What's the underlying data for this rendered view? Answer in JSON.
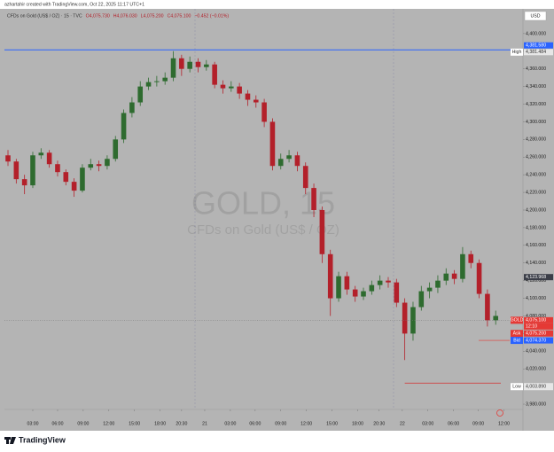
{
  "header": {
    "credit": "azhartahir created with TradingView.com, Oct 22, 2025 11:17 UTC+1",
    "symbol": "CFDs on Gold (US$ / OZ) · 15 · TVC",
    "open": "O4,075.730",
    "high": "H4,076.030",
    "low": "L4,075.200",
    "close": "C4,075.100",
    "change": "−0.452 (−0.01%)",
    "currency": "USD"
  },
  "watermark": {
    "title": "GOLD, 15",
    "subtitle": "CFDs on Gold (US$ / OZ)"
  },
  "footer": {
    "brand": "TradingView"
  },
  "chart_data": {
    "type": "candlestick",
    "up_color": "#2e6b2f",
    "down_color": "#b3202a",
    "x": [
      0,
      1,
      2,
      3,
      4,
      5,
      6,
      7,
      8,
      9,
      10,
      11,
      12,
      13,
      14,
      15,
      16,
      17,
      18,
      19,
      20,
      21,
      22,
      23,
      24,
      25,
      26,
      27,
      28,
      29,
      30,
      31,
      32,
      33,
      34,
      35,
      36,
      37,
      38,
      39,
      40,
      41,
      42,
      43,
      44,
      45,
      46,
      47,
      48,
      49,
      50,
      51,
      52,
      53,
      54,
      55,
      56,
      57,
      58,
      59
    ],
    "open": [
      4262,
      4255,
      4235,
      4228,
      4262,
      4265,
      4252,
      4243,
      4232,
      4222,
      4248,
      4252,
      4250,
      4258,
      4280,
      4310,
      4322,
      4340,
      4345,
      4346,
      4350,
      4372,
      4360,
      4368,
      4362,
      4365,
      4342,
      4338,
      4340,
      4332,
      4325,
      4322,
      4300,
      4250,
      4258,
      4262,
      4250,
      4225,
      4200,
      4150,
      4100,
      4125,
      4110,
      4102,
      4108,
      4115,
      4120,
      4118,
      4095,
      4060,
      4090,
      4108,
      4112,
      4120,
      4128,
      4122,
      4150,
      4140,
      4105,
      4075
    ],
    "high": [
      4268,
      4258,
      4240,
      4266,
      4270,
      4268,
      4256,
      4246,
      4236,
      4252,
      4258,
      4256,
      4262,
      4284,
      4314,
      4328,
      4346,
      4350,
      4352,
      4356,
      4380,
      4376,
      4374,
      4372,
      4370,
      4368,
      4347,
      4346,
      4344,
      4336,
      4330,
      4326,
      4304,
      4264,
      4268,
      4266,
      4254,
      4230,
      4204,
      4155,
      4130,
      4130,
      4114,
      4112,
      4120,
      4126,
      4124,
      4122,
      4100,
      4096,
      4114,
      4118,
      4126,
      4134,
      4132,
      4158,
      4154,
      4144,
      4110,
      4086
    ],
    "low": [
      4250,
      4230,
      4218,
      4225,
      4258,
      4248,
      4238,
      4228,
      4215,
      4220,
      4245,
      4244,
      4246,
      4255,
      4276,
      4305,
      4318,
      4336,
      4340,
      4342,
      4346,
      4352,
      4356,
      4356,
      4358,
      4338,
      4332,
      4334,
      4326,
      4318,
      4316,
      4294,
      4245,
      4246,
      4254,
      4244,
      4218,
      4192,
      4140,
      4080,
      4096,
      4104,
      4096,
      4098,
      4104,
      4110,
      4112,
      4090,
      4030,
      4052,
      4086,
      4100,
      4106,
      4115,
      4116,
      4118,
      4134,
      4100,
      4068,
      4070
    ],
    "close": [
      4255,
      4235,
      4228,
      4262,
      4265,
      4252,
      4243,
      4232,
      4222,
      4248,
      4252,
      4250,
      4258,
      4280,
      4310,
      4322,
      4340,
      4345,
      4346,
      4350,
      4372,
      4360,
      4368,
      4362,
      4365,
      4342,
      4338,
      4340,
      4332,
      4325,
      4322,
      4300,
      4250,
      4258,
      4262,
      4250,
      4225,
      4200,
      4150,
      4100,
      4125,
      4110,
      4102,
      4108,
      4115,
      4120,
      4118,
      4095,
      4060,
      4090,
      4108,
      4112,
      4120,
      4128,
      4122,
      4150,
      4140,
      4105,
      4075,
      4080
    ],
    "xlim": [
      -0.43,
      62.3
    ],
    "xticks": [
      {
        "value": 3.0,
        "label": "03:00"
      },
      {
        "value": 6.0,
        "label": "06:00"
      },
      {
        "value": 9.1,
        "label": "09:00"
      },
      {
        "value": 12.2,
        "label": "12:00"
      },
      {
        "value": 15.3,
        "label": "15:00"
      },
      {
        "value": 18.4,
        "label": "18:00"
      },
      {
        "value": 21.0,
        "label": "20:30"
      },
      {
        "value": 23.8,
        "label": "21"
      },
      {
        "value": 26.9,
        "label": "03:00"
      },
      {
        "value": 29.9,
        "label": "06:00"
      },
      {
        "value": 33.0,
        "label": "09:00"
      },
      {
        "value": 36.1,
        "label": "12:00"
      },
      {
        "value": 39.2,
        "label": "15:00"
      },
      {
        "value": 42.3,
        "label": "18:00"
      },
      {
        "value": 44.9,
        "label": "20:30"
      },
      {
        "value": 47.7,
        "label": "22"
      },
      {
        "value": 50.8,
        "label": "03:00"
      },
      {
        "value": 53.9,
        "label": "06:00"
      },
      {
        "value": 56.9,
        "label": "09:00"
      },
      {
        "value": 60.0,
        "label": "12:00"
      }
    ],
    "ylim": [
      3974,
      4428
    ],
    "yticks": [
      {
        "value": 3980,
        "label": "3,980.000"
      },
      {
        "value": 4000,
        "label": "4,000.000"
      },
      {
        "value": 4020,
        "label": "4,020.000"
      },
      {
        "value": 4040,
        "label": "4,040.000"
      },
      {
        "value": 4060,
        "label": "4,060.000"
      },
      {
        "value": 4080,
        "label": "4,080.000"
      },
      {
        "value": 4100,
        "label": "4,100.000"
      },
      {
        "value": 4120,
        "label": "4,120.000"
      },
      {
        "value": 4140,
        "label": "4,140.000"
      },
      {
        "value": 4160,
        "label": "4,160.000"
      },
      {
        "value": 4180,
        "label": "4,180.000"
      },
      {
        "value": 4200,
        "label": "4,200.000"
      },
      {
        "value": 4220,
        "label": "4,220.000"
      },
      {
        "value": 4240,
        "label": "4,240.000"
      },
      {
        "value": 4260,
        "label": "4,260.000"
      },
      {
        "value": 4280,
        "label": "4,280.000"
      },
      {
        "value": 4300,
        "label": "4,300.000"
      },
      {
        "value": 4320,
        "label": "4,320.000"
      },
      {
        "value": 4340,
        "label": "4,340.000"
      },
      {
        "value": 4360,
        "label": "4,360.000"
      },
      {
        "value": 4380,
        "label": "4,380.000"
      },
      {
        "value": 4400,
        "label": "4,400.000"
      }
    ],
    "high_line": {
      "value": 4381.484,
      "label": "4,381.484",
      "tag": "High",
      "color": "#2962ff"
    },
    "low_line": {
      "value": 4003.89,
      "label": "4,003.890",
      "tag": "Low",
      "color": "#d32f2f"
    },
    "price_labels": [
      {
        "value": 4381.58,
        "label": "4,381.580",
        "color": "#2962ff"
      },
      {
        "value": 4123.968,
        "label": "4,123.968",
        "color": "#3b3e48"
      },
      {
        "value": 4075.1,
        "label": "4,075.100",
        "tag": "GOLD",
        "time": "12:10",
        "color": "#e53935"
      },
      {
        "value": 4075.2,
        "label": "4,075.200",
        "tag": "Ask",
        "color": "#e53935"
      },
      {
        "value": 4074.37,
        "label": "4,074.370",
        "tag": "Bid",
        "color": "#2962ff"
      }
    ]
  }
}
